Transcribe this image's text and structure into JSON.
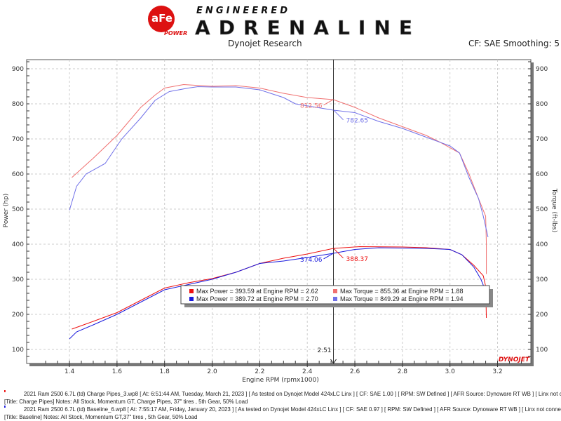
{
  "header": {
    "logo_brand": "aFe POWER",
    "logo_tag_small": "ENGINEERED",
    "logo_tag_big": "ADRENALINE",
    "center": "Dynojet Research",
    "right": "CF: SAE Smoothing: 5"
  },
  "chart_data": {
    "type": "line",
    "xlabel": "Engine RPM (rpmx1000)",
    "ylabel": "Power (hp)",
    "ylabel_right": "Torque (ft-lbs)",
    "xlim": [
      1.22,
      3.34
    ],
    "ylim": [
      60,
      926
    ],
    "xticks": [
      "1.4",
      "1.6",
      "1.8",
      "2.0",
      "2.2",
      "2.4",
      "2.6",
      "2.8",
      "3.0",
      "3.2"
    ],
    "yticks": [
      "100",
      "200",
      "300",
      "400",
      "500",
      "600",
      "700",
      "800",
      "900"
    ],
    "grid": true,
    "cursor": {
      "x": 2.51,
      "label": "2.51"
    },
    "colors": {
      "power1": "#ee1111",
      "power2": "#1a1add",
      "torque1": "#f07070",
      "torque2": "#7070e8"
    },
    "series": [
      {
        "key": "torque1",
        "x": [
          1.41,
          1.5,
          1.6,
          1.7,
          1.76,
          1.8,
          1.88,
          2.0,
          2.1,
          2.2,
          2.3,
          2.4,
          2.51,
          2.6,
          2.7,
          2.8,
          2.9,
          2.96,
          3.04,
          3.08,
          3.12,
          3.15,
          3.153,
          3.153
        ],
        "y": [
          590,
          645,
          710,
          790,
          825,
          845,
          855,
          850,
          852,
          845,
          830,
          818,
          812,
          790,
          760,
          735,
          710,
          690,
          660,
          600,
          530,
          480,
          400,
          315
        ]
      },
      {
        "key": "torque2",
        "x": [
          1.4,
          1.43,
          1.47,
          1.55,
          1.6,
          1.62,
          1.7,
          1.76,
          1.82,
          1.9,
          1.94,
          2.0,
          2.1,
          2.2,
          2.3,
          2.35,
          2.51,
          2.6,
          2.7,
          2.8,
          2.9,
          3.0,
          3.04,
          3.08,
          3.12,
          3.14,
          3.16
        ],
        "y": [
          497,
          565,
          600,
          630,
          680,
          700,
          760,
          810,
          835,
          845,
          849,
          848,
          848,
          840,
          818,
          800,
          782,
          775,
          750,
          730,
          705,
          680,
          660,
          590,
          530,
          480,
          420
        ]
      },
      {
        "key": "power1",
        "x": [
          1.41,
          1.5,
          1.6,
          1.7,
          1.8,
          1.9,
          2.0,
          2.1,
          2.2,
          2.3,
          2.4,
          2.51,
          2.62,
          2.8,
          2.9,
          3.0,
          3.05,
          3.1,
          3.14,
          3.15,
          3.153
        ],
        "y": [
          158,
          180,
          205,
          240,
          275,
          290,
          302,
          320,
          345,
          360,
          372,
          388,
          393,
          392,
          390,
          385,
          370,
          340,
          310,
          280,
          190
        ]
      },
      {
        "key": "power2",
        "x": [
          1.4,
          1.43,
          1.5,
          1.6,
          1.7,
          1.8,
          1.9,
          2.0,
          2.1,
          2.2,
          2.3,
          2.4,
          2.51,
          2.6,
          2.7,
          2.9,
          3.0,
          3.05,
          3.1,
          3.13,
          3.16
        ],
        "y": [
          130,
          150,
          170,
          200,
          235,
          270,
          285,
          300,
          320,
          345,
          352,
          362,
          374,
          385,
          389.7,
          388,
          385,
          370,
          335,
          300,
          250
        ]
      }
    ],
    "annotations": [
      {
        "text": "812.56",
        "x": 2.51,
        "y": 812.56,
        "color": "#f07070",
        "side": "left"
      },
      {
        "text": "782.65",
        "x": 2.51,
        "y": 782.65,
        "color": "#7070e8",
        "side": "right"
      },
      {
        "text": "374.06",
        "x": 2.51,
        "y": 374.06,
        "color": "#1a1add",
        "side": "left"
      },
      {
        "text": "388.37",
        "x": 2.51,
        "y": 388.37,
        "color": "#ee1111",
        "side": "right"
      }
    ],
    "legend": {
      "placement": "bottom-center",
      "entries": [
        {
          "text": "Max Power = 393.59 at Engine RPM = 2.62",
          "color": "#ee1111"
        },
        {
          "text": "Max Torque = 855.36 at Engine RPM = 1.88",
          "color": "#f07070"
        },
        {
          "text": "Max Power = 389.72 at Engine RPM = 2.70",
          "color": "#1a1add"
        },
        {
          "text": "Max Torque = 849.29 at Engine RPM = 1.94",
          "color": "#7070e8"
        }
      ]
    },
    "watermark": "DYNOJET"
  },
  "footer": [
    {
      "color": "#ee1111",
      "line1": "2021 Ram 2500 6.7L (td) Charge Pipes_3.wp8 [ At: 6:51:44 AM, Tuesday, March 21, 2023 ] [ As tested on Dynojet Model 424xLC Linx ] [ CF: SAE 1.00 ] [ RPM: SW Defined ] [ AFR Source: Dynoware RT WB ] [ Linx not connected",
      "line2": "[Title: Charge Pipes]  Notes: All Stock, Momentum GT, Charge Pipes, 37\" tires , 5th Gear, 50% Load"
    },
    {
      "color": "#1a1add",
      "line1": "2021 Ram 2500 6.7L (td) Baseline_6.wp8 [ At: 7:55:17 AM, Friday, January 20, 2023 ] [ As tested on Dynojet Model 424xLC Linx ] [ CF: SAE 0.97 ] [ RPM: SW Defined ] [ AFR Source: Dynoware RT WB ] [ Linx not connected ]",
      "line2": "[Title: Baseline]  Notes: All Stock, Momentum GT,37\" tires , 5th Gear, 50% Load"
    }
  ]
}
